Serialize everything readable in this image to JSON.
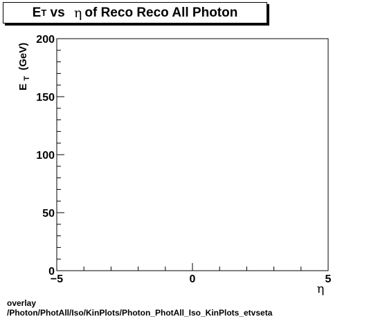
{
  "chart_data": {
    "type": "scatter",
    "title_parts": {
      "e": "E",
      "sub": "T",
      "vs": " vs ",
      "eta": "η",
      "rest": "of Reco Reco All Photon"
    },
    "xlabel": "η",
    "ylabel_parts": {
      "e": "E",
      "sub": "T",
      "rest": " (GeV)"
    },
    "xlim": [
      -5,
      5
    ],
    "ylim": [
      0,
      200
    ],
    "x_major_ticks": [
      -5,
      0,
      5
    ],
    "x_tick_labels": [
      "−5",
      "0",
      "5"
    ],
    "y_major_ticks": [
      0,
      50,
      100,
      150,
      200
    ],
    "y_tick_labels": [
      "0",
      "50",
      "100",
      "150",
      "200"
    ],
    "points": [],
    "grid": false
  },
  "footer": {
    "line1": "overlay",
    "line2": "/Photon/PhotAll/Iso/KinPlots/Photon_PhotAll_Iso_KinPlots_etvseta"
  }
}
